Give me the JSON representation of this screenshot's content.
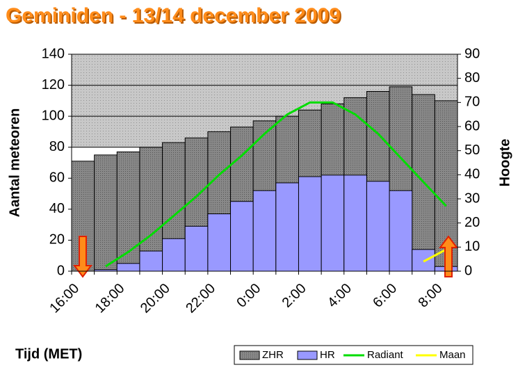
{
  "chart_data": {
    "type": "bar",
    "title": "Geminiden - 13/14 december 2009",
    "xlabel": "Tijd (MET)",
    "ylabel": "Aantal meteoren",
    "y2label": "Hoogte",
    "categories": [
      "16:00",
      null,
      "18:00",
      null,
      "20:00",
      null,
      "22:00",
      null,
      "0:00",
      null,
      "2:00",
      null,
      "4:00",
      null,
      "6:00",
      null,
      "8:00"
    ],
    "series": [
      {
        "name": "ZHR",
        "color": "#8c8888",
        "values": [
          71,
          75,
          77,
          80,
          83,
          86,
          90,
          93,
          97,
          100,
          104,
          108,
          112,
          116,
          119,
          114,
          110
        ]
      },
      {
        "name": "HR",
        "color": "#9999ff",
        "values": [
          0,
          1,
          5,
          13,
          21,
          29,
          37,
          45,
          52,
          57,
          61,
          62,
          62,
          58,
          52,
          14,
          3
        ]
      },
      {
        "name": "Radiant",
        "color": "#00dd00",
        "axis": "y2",
        "values": [
          null,
          2,
          8,
          15,
          23,
          31,
          40,
          48,
          57,
          65,
          70,
          70,
          65,
          57,
          47,
          37,
          27
        ]
      },
      {
        "name": "Maan",
        "color": "#ffff00",
        "axis": "y2",
        "values": [
          null,
          null,
          null,
          null,
          null,
          null,
          null,
          null,
          null,
          null,
          null,
          null,
          null,
          null,
          null,
          4,
          9
        ]
      }
    ],
    "ylim": [
      0,
      140
    ],
    "yticks": [
      0,
      20,
      40,
      60,
      80,
      100,
      120,
      140
    ],
    "y2lim": [
      0,
      90
    ],
    "y2ticks": [
      0,
      10,
      20,
      30,
      40,
      50,
      60,
      70,
      80,
      90
    ],
    "grid": true,
    "legend": "bottom"
  }
}
